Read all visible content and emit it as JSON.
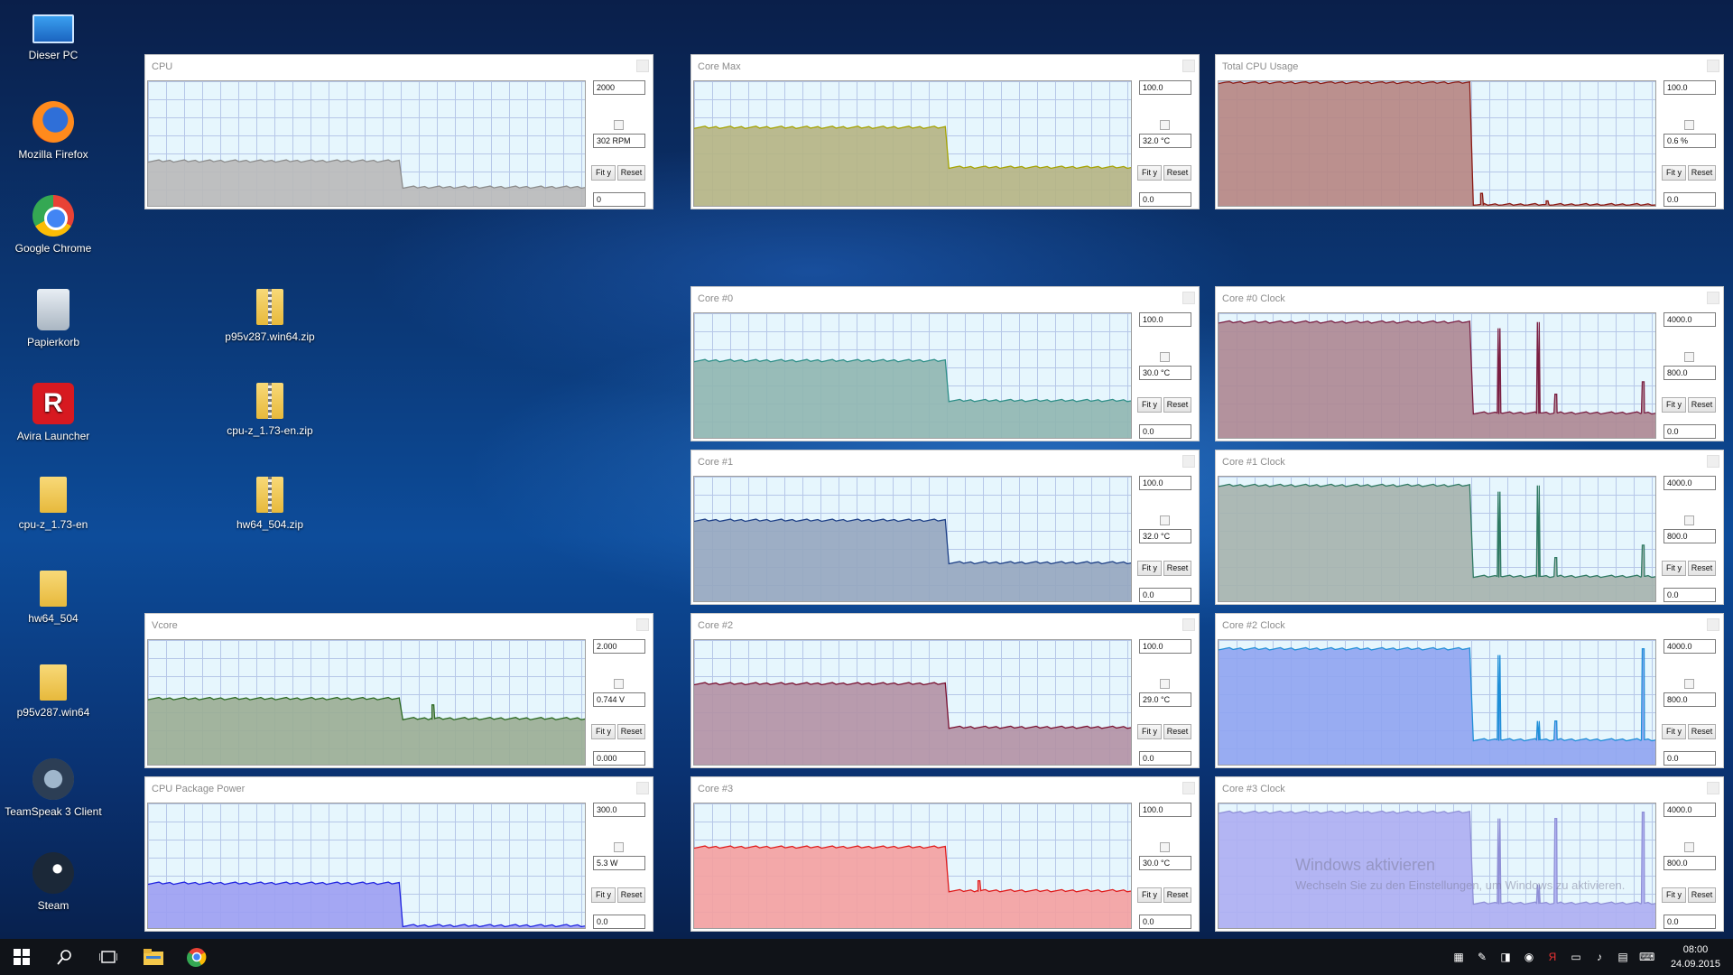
{
  "desktop_icons": [
    {
      "label": "Dieser PC",
      "icon": "computer-icon"
    },
    {
      "label": "Mozilla Firefox",
      "icon": "firefox-icon"
    },
    {
      "label": "Google Chrome",
      "icon": "chrome-icon"
    },
    {
      "label": "Papierkorb",
      "icon": "recycle-bin-icon"
    },
    {
      "label": "Avira Launcher",
      "icon": "avira-icon"
    },
    {
      "label": "cpu-z_1.73-en",
      "icon": "folder-icon"
    },
    {
      "label": "hw64_504",
      "icon": "folder-icon"
    },
    {
      "label": "p95v287.win64",
      "icon": "folder-icon"
    },
    {
      "label": "TeamSpeak 3 Client",
      "icon": "teamspeak-icon"
    },
    {
      "label": "Steam",
      "icon": "steam-icon"
    },
    {
      "label": "p95v287.win64.zip",
      "icon": "zip-folder-icon"
    },
    {
      "label": "cpu-z_1.73-en.zip",
      "icon": "zip-folder-icon"
    },
    {
      "label": "hw64_504.zip",
      "icon": "zip-folder-icon"
    }
  ],
  "graphs": [
    {
      "title": "CPU",
      "max": "2000",
      "current": "302 RPM",
      "min": "0",
      "fit_label": "Fit y",
      "reset_label": "Reset",
      "color": "#b9b9b9",
      "stroke": "#8c8c8c",
      "hi": 0.36,
      "lo": 0.15,
      "split": 0.58,
      "spikes": []
    },
    {
      "title": "Core Max",
      "max": "100.0",
      "current": "32.0 °C",
      "min": "0.0",
      "fit_label": "Fit y",
      "reset_label": "Reset",
      "color": "#b5b483",
      "stroke": "#a6a400",
      "hi": 0.63,
      "lo": 0.31,
      "split": 0.58,
      "spikes": []
    },
    {
      "title": "Total CPU Usage",
      "max": "100.0",
      "current": "0.6 %",
      "min": "0.0",
      "fit_label": "Fit y",
      "reset_label": "Reset",
      "color": "#b68582",
      "stroke": "#8b1a14",
      "hi": 0.99,
      "lo": 0.01,
      "split": 0.58,
      "spikes": [
        [
          0.6,
          0.1
        ],
        [
          0.75,
          0.04
        ]
      ]
    },
    {
      "title": "Core #0",
      "max": "100.0",
      "current": "30.0 °C",
      "min": "0.0",
      "fit_label": "Fit y",
      "reset_label": "Reset",
      "color": "#8fb6b0",
      "stroke": "#2f8f88",
      "hi": 0.62,
      "lo": 0.3,
      "split": 0.58,
      "spikes": []
    },
    {
      "title": "Core #0 Clock",
      "max": "4000.0",
      "current": "800.0",
      "min": "0.0",
      "fit_label": "Fit y",
      "reset_label": "Reset",
      "color": "#ad8792",
      "stroke": "#7a1e42",
      "hi": 0.93,
      "lo": 0.2,
      "split": 0.58,
      "spikes": [
        [
          0.64,
          0.88
        ],
        [
          0.73,
          0.93
        ],
        [
          0.77,
          0.35
        ],
        [
          0.97,
          0.45
        ]
      ]
    },
    {
      "title": "Core #1",
      "max": "100.0",
      "current": "32.0 °C",
      "min": "0.0",
      "fit_label": "Fit y",
      "reset_label": "Reset",
      "color": "#95a6bf",
      "stroke": "#1d3f86",
      "hi": 0.65,
      "lo": 0.31,
      "split": 0.58,
      "spikes": []
    },
    {
      "title": "Core #1 Clock",
      "max": "4000.0",
      "current": "800.0",
      "min": "0.0",
      "fit_label": "Fit y",
      "reset_label": "Reset",
      "color": "#a5b2ad",
      "stroke": "#2f7a63",
      "hi": 0.93,
      "lo": 0.2,
      "split": 0.58,
      "spikes": [
        [
          0.64,
          0.88
        ],
        [
          0.73,
          0.93
        ],
        [
          0.77,
          0.35
        ],
        [
          0.97,
          0.45
        ]
      ]
    },
    {
      "title": "Vcore",
      "max": "2.000",
      "current": "0.744 V",
      "min": "0.000",
      "fit_label": "Fit y",
      "reset_label": "Reset",
      "color": "#9aad93",
      "stroke": "#2c6a22",
      "hi": 0.53,
      "lo": 0.37,
      "split": 0.58,
      "spikes": [
        [
          0.65,
          0.48
        ]
      ]
    },
    {
      "title": "Core #2",
      "max": "100.0",
      "current": "29.0 °C",
      "min": "0.0",
      "fit_label": "Fit y",
      "reset_label": "Reset",
      "color": "#b391a4",
      "stroke": "#7a1030",
      "hi": 0.65,
      "lo": 0.3,
      "split": 0.58,
      "spikes": []
    },
    {
      "title": "Core #2 Clock",
      "max": "4000.0",
      "current": "800.0",
      "min": "0.0",
      "fit_label": "Fit y",
      "reset_label": "Reset",
      "color": "#8fa4f1",
      "stroke": "#1f8fd8",
      "hi": 0.93,
      "lo": 0.2,
      "split": 0.58,
      "spikes": [
        [
          0.64,
          0.88
        ],
        [
          0.73,
          0.35
        ],
        [
          0.77,
          0.35
        ],
        [
          0.97,
          0.93
        ]
      ]
    },
    {
      "title": "CPU Package Power",
      "max": "300.0",
      "current": "5.3 W",
      "min": "0.0",
      "fit_label": "Fit y",
      "reset_label": "Reset",
      "color": "#9c9ef2",
      "stroke": "#2024e0",
      "hi": 0.36,
      "lo": 0.02,
      "split": 0.58,
      "spikes": []
    },
    {
      "title": "Core #3",
      "max": "100.0",
      "current": "30.0 °C",
      "min": "0.0",
      "fit_label": "Fit y",
      "reset_label": "Reset",
      "color": "#f4a0a0",
      "stroke": "#e01c1c",
      "hi": 0.65,
      "lo": 0.3,
      "split": 0.58,
      "spikes": [
        [
          0.65,
          0.38
        ]
      ]
    },
    {
      "title": "Core #3 Clock",
      "max": "4000.0",
      "current": "800.0",
      "min": "0.0",
      "fit_label": "Fit y",
      "reset_label": "Reset",
      "color": "#adaef2",
      "stroke": "#8f90d6",
      "hi": 0.93,
      "lo": 0.2,
      "split": 0.58,
      "spikes": [
        [
          0.64,
          0.88
        ],
        [
          0.73,
          0.35
        ],
        [
          0.77,
          0.88
        ],
        [
          0.97,
          0.93
        ]
      ]
    }
  ],
  "watermark": {
    "line1": "Windows aktivieren",
    "line2": "Wechseln Sie zu den Einstellungen, um Windows zu aktivieren."
  },
  "taskbar": {
    "time": "08:00",
    "date": "24.09.2015"
  }
}
